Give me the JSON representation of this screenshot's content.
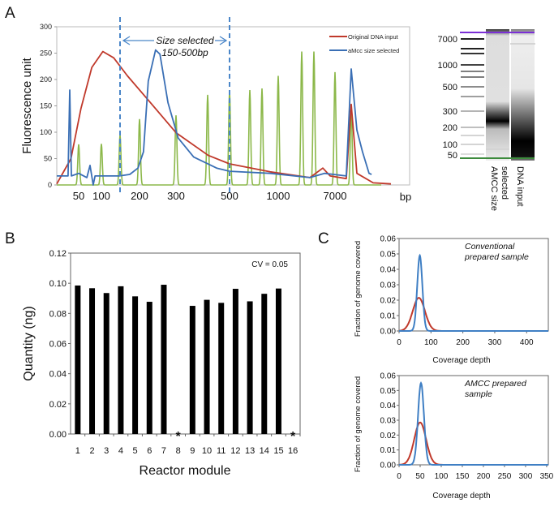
{
  "panels": {
    "a": "A",
    "b": "B",
    "c": "C"
  },
  "chart_data": [
    {
      "id": "A",
      "type": "line",
      "ylabel": "Fluorescence unit",
      "xlabel": "bp",
      "ylim": [
        0,
        300
      ],
      "yticks": [
        0,
        50,
        100,
        150,
        200,
        250,
        300
      ],
      "xtick_labels": [
        "50",
        "100",
        "200",
        "300",
        "500",
        "1000",
        "7000"
      ],
      "xtick_values": [
        50,
        100,
        200,
        300,
        500,
        1000,
        7000
      ],
      "legend_position": "top-right",
      "annotation": {
        "line1": "Size selected",
        "line2": "150-500bp",
        "range": [
          150,
          500
        ]
      },
      "series": [
        {
          "name": "Original DNA input",
          "color": "#c0392b",
          "points": [
            [
              20,
              2
            ],
            [
              37,
              50
            ],
            [
              55,
              145
            ],
            [
              79,
              223
            ],
            [
              104,
              253
            ],
            [
              133,
              241
            ],
            [
              169,
              207
            ],
            [
              224,
              161
            ],
            [
              300,
              99
            ],
            [
              403,
              56
            ],
            [
              500,
              40
            ],
            [
              850,
              25
            ],
            [
              2670,
              14
            ],
            [
              4690,
              32
            ],
            [
              6080,
              17
            ],
            [
              9350,
              12
            ],
            [
              10380,
              153
            ],
            [
              11754,
              22
            ],
            [
              15700,
              4
            ],
            [
              20000,
              2
            ]
          ]
        },
        {
          "name": "aMcc size selected",
          "color": "#3a6fb5",
          "points": [
            [
              20,
              17
            ],
            [
              33,
              17
            ],
            [
              35,
              180
            ],
            [
              37.7,
              17
            ],
            [
              50,
              22
            ],
            [
              68,
              14
            ],
            [
              75,
              37
            ],
            [
              82,
              0
            ],
            [
              86,
              17
            ],
            [
              148,
              17
            ],
            [
              175,
              20
            ],
            [
              196,
              32
            ],
            [
              211,
              63
            ],
            [
              224,
              197
            ],
            [
              244,
              256
            ],
            [
              256,
              248
            ],
            [
              278,
              156
            ],
            [
              307,
              89
            ],
            [
              356,
              53
            ],
            [
              441,
              32
            ],
            [
              500,
              26
            ],
            [
              850,
              22
            ],
            [
              2670,
              14
            ],
            [
              5000,
              22
            ],
            [
              9350,
              17
            ],
            [
              10380,
              220
            ],
            [
              11754,
              104
            ],
            [
              13100,
              63
            ],
            [
              14700,
              22
            ],
            [
              15300,
              20
            ]
          ]
        },
        {
          "name": "Ladder",
          "color": "#8cb84a",
          "peaks": [
            [
              50,
              77
            ],
            [
              100,
              78
            ],
            [
              150,
              95
            ],
            [
              200,
              125
            ],
            [
              300,
              132
            ],
            [
              400,
              171
            ],
            [
              500,
              178
            ],
            [
              600,
              180
            ],
            [
              700,
              183
            ],
            [
              1000,
              207
            ],
            [
              2000,
              253
            ],
            [
              3000,
              253
            ],
            [
              7000,
              214
            ],
            [
              10380,
              150
            ]
          ]
        }
      ]
    },
    {
      "id": "A-gel",
      "type": "gel",
      "ladder_labels": [
        "7000",
        "1000",
        "500",
        "300",
        "200",
        "100",
        "50"
      ],
      "lanes": [
        "AMCC size selected",
        "DNA input"
      ],
      "marker_colors": {
        "upper": "#7b2fd6",
        "lower": "#3d8b3d"
      }
    },
    {
      "id": "B",
      "type": "bar",
      "ylabel": "Quantity (ng)",
      "xlabel": "Reactor module",
      "ylim": [
        0,
        0.12
      ],
      "yticks": [
        "0.00",
        "0.02",
        "0.04",
        "0.06",
        "0.08",
        "0.10",
        "0.12"
      ],
      "categories": [
        "1",
        "2",
        "3",
        "4",
        "5",
        "6",
        "7",
        "8",
        "9",
        "10",
        "11",
        "12",
        "13",
        "14",
        "15",
        "16"
      ],
      "values": [
        0.0985,
        0.0967,
        0.0935,
        0.098,
        0.0913,
        0.0877,
        0.099,
        0,
        0.085,
        0.089,
        0.087,
        0.0963,
        0.088,
        0.093,
        0.0965,
        0
      ],
      "missing_marker": "*",
      "missing": [
        "8",
        "16"
      ],
      "annotation": "CV = 0.05",
      "bar_color": "#000000"
    },
    {
      "id": "C-top",
      "type": "line",
      "title": "Conventional prepared sample",
      "title_lines": [
        "Conventional",
        "prepared sample"
      ],
      "ylabel": "Fraction of genome covered",
      "xlabel": "Coverage depth",
      "ylim": [
        0,
        0.06
      ],
      "xlim": [
        0,
        468
      ],
      "yticks": [
        "0.00",
        "0.01",
        "0.02",
        "0.03",
        "0.04",
        "0.05",
        "0.06"
      ],
      "xticks": [
        0,
        100,
        200,
        300,
        400
      ],
      "series": [
        {
          "name": "blue",
          "color": "#3f7fc4",
          "mean": 65,
          "sd": 8,
          "peak": 0.049
        },
        {
          "name": "red",
          "color": "#c0392b",
          "mean": 62,
          "sd": 19,
          "peak": 0.0215
        }
      ]
    },
    {
      "id": "C-bottom",
      "type": "line",
      "title": "AMCC prepared sample",
      "title_lines": [
        "AMCC prepared",
        "sample"
      ],
      "ylabel": "Fraction of genome covered",
      "xlabel": "Coverage depth",
      "ylim": [
        0,
        0.06
      ],
      "xlim": [
        0,
        354
      ],
      "yticks": [
        "0.00",
        "0.01",
        "0.02",
        "0.03",
        "0.04",
        "0.05",
        "0.06"
      ],
      "xticks": [
        0,
        50,
        100,
        150,
        200,
        250,
        300,
        350
      ],
      "series": [
        {
          "name": "blue",
          "color": "#3f7fc4",
          "mean": 52,
          "sd": 7,
          "peak": 0.055
        },
        {
          "name": "red",
          "color": "#c0392b",
          "mean": 50,
          "sd": 14,
          "peak": 0.0285
        }
      ]
    }
  ]
}
